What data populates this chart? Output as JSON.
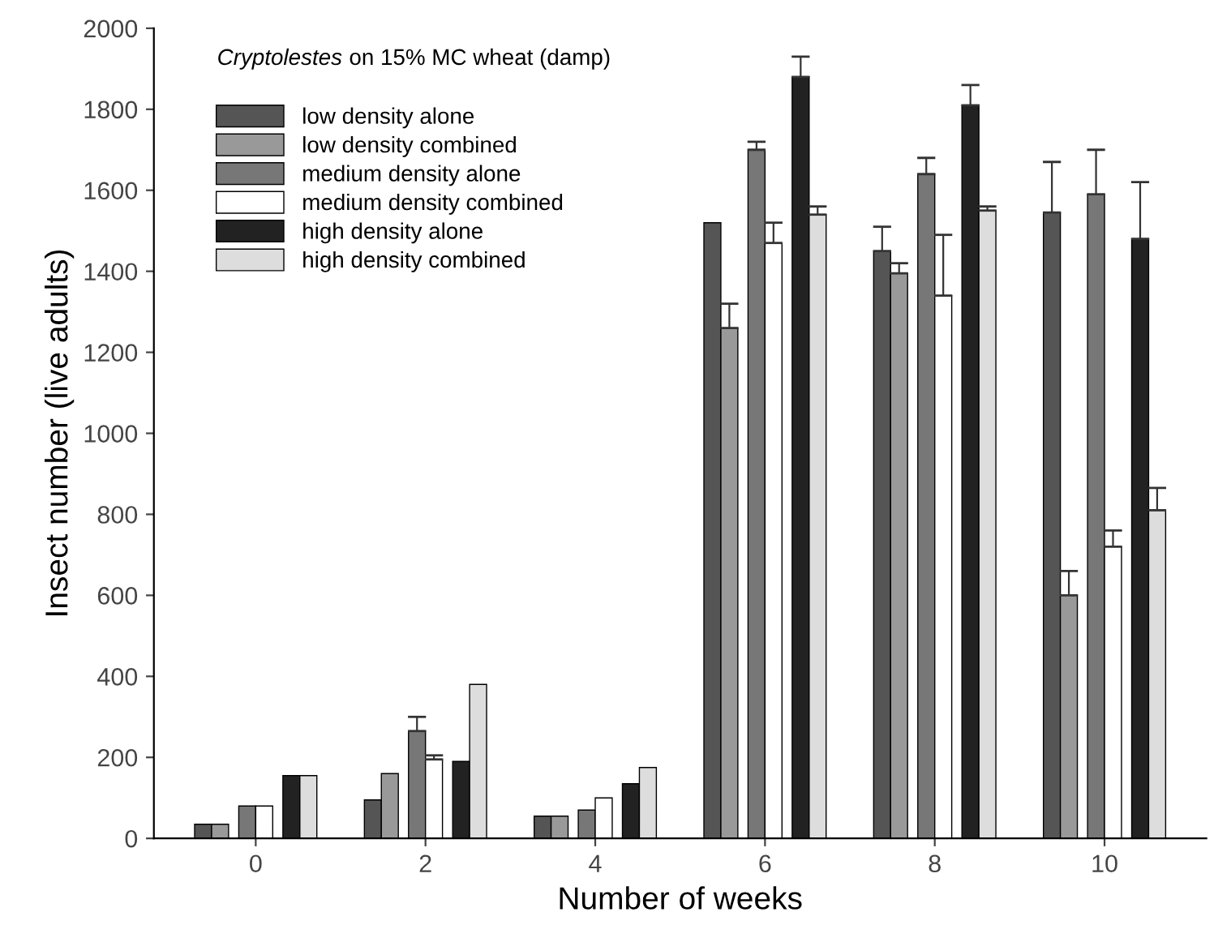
{
  "chart_data": {
    "type": "bar",
    "title": "Cryptolestes on 15% MC wheat (damp)",
    "xlabel": "Number of weeks",
    "ylabel": "Insect number (live adults)",
    "categories": [
      "0",
      "2",
      "4",
      "6",
      "8",
      "10"
    ],
    "ylim": [
      0,
      2000
    ],
    "yticks": [
      0,
      200,
      400,
      600,
      800,
      1000,
      1200,
      1400,
      1600,
      1800,
      2000
    ],
    "grid": false,
    "legend": "top left",
    "series": [
      {
        "name": "low density alone",
        "color": "#555555",
        "values": [
          35,
          95,
          55,
          1520,
          1450,
          1545
        ],
        "errors": [
          null,
          null,
          null,
          null,
          [
            1450,
            1510
          ],
          [
            1545,
            1670
          ]
        ]
      },
      {
        "name": "low density combined",
        "color": "#999999",
        "values": [
          35,
          160,
          55,
          1260,
          1395,
          600
        ],
        "errors": [
          null,
          null,
          null,
          [
            1260,
            1320
          ],
          [
            1395,
            1420
          ],
          [
            600,
            660
          ]
        ]
      },
      {
        "name": "medium density alone",
        "color": "#777777",
        "values": [
          80,
          265,
          70,
          1700,
          1640,
          1590
        ],
        "errors": [
          null,
          [
            265,
            300
          ],
          null,
          [
            1700,
            1720
          ],
          [
            1640,
            1680
          ],
          [
            1590,
            1700
          ]
        ]
      },
      {
        "name": "medium density combined",
        "color": "#ffffff",
        "values": [
          80,
          195,
          100,
          1470,
          1340,
          720
        ],
        "errors": [
          null,
          [
            195,
            205
          ],
          null,
          [
            1470,
            1520
          ],
          [
            1340,
            1490
          ],
          [
            720,
            760
          ]
        ]
      },
      {
        "name": "high density alone",
        "color": "#222222",
        "values": [
          155,
          190,
          135,
          1880,
          1810,
          1480
        ],
        "errors": [
          null,
          null,
          null,
          [
            1880,
            1930
          ],
          [
            1810,
            1860
          ],
          [
            1480,
            1620
          ]
        ]
      },
      {
        "name": "high density combined",
        "color": "#dddddd",
        "values": [
          155,
          380,
          175,
          1540,
          1550,
          810
        ],
        "errors": [
          null,
          null,
          null,
          [
            1540,
            1560
          ],
          [
            1550,
            1560
          ],
          [
            810,
            865
          ]
        ]
      }
    ]
  }
}
